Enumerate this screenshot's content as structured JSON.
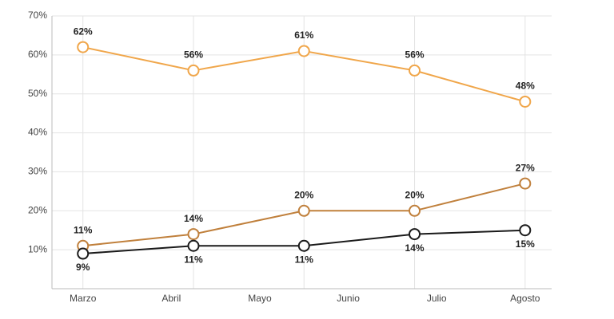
{
  "chart_data": {
    "type": "line",
    "x": [
      0,
      1.25,
      2.5,
      3.75,
      5
    ],
    "xlim": [
      -0.35,
      5.3
    ],
    "xticks": [
      {
        "value": 0,
        "label": "Marzo"
      },
      {
        "value": 1,
        "label": "Abril"
      },
      {
        "value": 2,
        "label": "Mayo"
      },
      {
        "value": 3,
        "label": "Junio"
      },
      {
        "value": 4,
        "label": "Julio"
      },
      {
        "value": 5,
        "label": "Agosto"
      }
    ],
    "ylim": [
      0,
      70
    ],
    "yticks": [
      {
        "value": 10,
        "label": "10%"
      },
      {
        "value": 20,
        "label": "20%"
      },
      {
        "value": 30,
        "label": "30%"
      },
      {
        "value": 40,
        "label": "40%"
      },
      {
        "value": 50,
        "label": "50%"
      },
      {
        "value": 60,
        "label": "60%"
      },
      {
        "value": 70,
        "label": "70%"
      }
    ],
    "grid": true,
    "series": [
      {
        "color": "#f0a64a",
        "values": [
          62,
          56,
          61,
          56,
          48
        ],
        "value_labels": [
          "62%",
          "56%",
          "61%",
          "56%",
          "48%"
        ],
        "label_position": "above"
      },
      {
        "color": "#c0803c",
        "values": [
          11,
          14,
          20,
          20,
          27
        ],
        "value_labels": [
          "11%",
          "14%",
          "20%",
          "20%",
          "27%"
        ],
        "label_position": "above"
      },
      {
        "color": "#1a1a1a",
        "values": [
          9,
          11,
          11,
          14,
          15
        ],
        "value_labels": [
          "9%",
          "11%",
          "11%",
          "14%",
          "15%"
        ],
        "label_position": "below"
      }
    ]
  }
}
